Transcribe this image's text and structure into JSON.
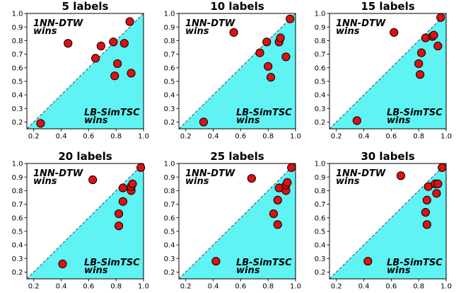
{
  "chart_data": [
    {
      "type": "scatter",
      "title": "5 labels",
      "xlim": [
        0.15,
        1.0
      ],
      "ylim": [
        0.15,
        1.0
      ],
      "xticks": [
        "0.2",
        "0.4",
        "0.6",
        "0.8",
        "1.0"
      ],
      "yticks": [
        "0.2",
        "0.3",
        "0.4",
        "0.5",
        "0.6",
        "0.7",
        "0.8",
        "0.9",
        "1.0"
      ],
      "annotation_top": [
        "1NN-DTW",
        "wins"
      ],
      "annotation_bottom": [
        "LB-SimTSC",
        "wins"
      ],
      "points": [
        [
          0.25,
          0.19
        ],
        [
          0.45,
          0.78
        ],
        [
          0.65,
          0.67
        ],
        [
          0.69,
          0.76
        ],
        [
          0.78,
          0.79
        ],
        [
          0.79,
          0.54
        ],
        [
          0.81,
          0.63
        ],
        [
          0.86,
          0.78
        ],
        [
          0.9,
          0.94
        ],
        [
          0.91,
          0.56
        ]
      ]
    },
    {
      "type": "scatter",
      "title": "10 labels",
      "xlim": [
        0.15,
        1.0
      ],
      "ylim": [
        0.15,
        1.0
      ],
      "xticks": [
        "0.2",
        "0.4",
        "0.6",
        "0.8",
        "1.0"
      ],
      "yticks": [
        "0.2",
        "0.3",
        "0.4",
        "0.5",
        "0.6",
        "0.7",
        "0.8",
        "0.9",
        "1.0"
      ],
      "annotation_top": [
        "1NN-DTW",
        "wins"
      ],
      "annotation_bottom": [
        "LB-SimTSC",
        "wins"
      ],
      "points": [
        [
          0.33,
          0.2
        ],
        [
          0.55,
          0.86
        ],
        [
          0.74,
          0.71
        ],
        [
          0.79,
          0.79
        ],
        [
          0.8,
          0.61
        ],
        [
          0.82,
          0.53
        ],
        [
          0.88,
          0.79
        ],
        [
          0.89,
          0.82
        ],
        [
          0.93,
          0.68
        ],
        [
          0.96,
          0.96
        ]
      ]
    },
    {
      "type": "scatter",
      "title": "15 labels",
      "xlim": [
        0.15,
        1.0
      ],
      "ylim": [
        0.15,
        1.0
      ],
      "xticks": [
        "0.2",
        "0.4",
        "0.6",
        "0.8",
        "1.0"
      ],
      "yticks": [
        "0.2",
        "0.3",
        "0.4",
        "0.5",
        "0.6",
        "0.7",
        "0.8",
        "0.9",
        "1.0"
      ],
      "annotation_top": [
        "1NN-DTW",
        "wins"
      ],
      "annotation_bottom": [
        "LB-SimTSC",
        "wins"
      ],
      "points": [
        [
          0.35,
          0.21
        ],
        [
          0.62,
          0.86
        ],
        [
          0.8,
          0.63
        ],
        [
          0.81,
          0.55
        ],
        [
          0.82,
          0.71
        ],
        [
          0.85,
          0.82
        ],
        [
          0.9,
          0.83
        ],
        [
          0.91,
          0.84
        ],
        [
          0.94,
          0.76
        ],
        [
          0.96,
          0.97
        ]
      ]
    },
    {
      "type": "scatter",
      "title": "20 labels",
      "xlim": [
        0.15,
        1.0
      ],
      "ylim": [
        0.15,
        1.0
      ],
      "xticks": [
        "0.2",
        "0.4",
        "0.6",
        "0.8",
        "1.0"
      ],
      "yticks": [
        "0.2",
        "0.3",
        "0.4",
        "0.5",
        "0.6",
        "0.7",
        "0.8",
        "0.9",
        "1.0"
      ],
      "annotation_top": [
        "1NN-DTW",
        "wins"
      ],
      "annotation_bottom": [
        "LB-SimTSC",
        "wins"
      ],
      "points": [
        [
          0.41,
          0.26
        ],
        [
          0.63,
          0.88
        ],
        [
          0.82,
          0.63
        ],
        [
          0.82,
          0.54
        ],
        [
          0.85,
          0.72
        ],
        [
          0.85,
          0.82
        ],
        [
          0.91,
          0.8
        ],
        [
          0.91,
          0.83
        ],
        [
          0.92,
          0.85
        ],
        [
          0.98,
          0.97
        ]
      ]
    },
    {
      "type": "scatter",
      "title": "25 labels",
      "xlim": [
        0.15,
        1.0
      ],
      "ylim": [
        0.15,
        1.0
      ],
      "xticks": [
        "0.2",
        "0.4",
        "0.6",
        "0.8",
        "1.0"
      ],
      "yticks": [
        "0.2",
        "0.3",
        "0.4",
        "0.5",
        "0.6",
        "0.7",
        "0.8",
        "0.9",
        "1.0"
      ],
      "annotation_top": [
        "1NN-DTW",
        "wins"
      ],
      "annotation_bottom": [
        "LB-SimTSC",
        "wins"
      ],
      "points": [
        [
          0.42,
          0.28
        ],
        [
          0.68,
          0.89
        ],
        [
          0.84,
          0.63
        ],
        [
          0.87,
          0.55
        ],
        [
          0.87,
          0.73
        ],
        [
          0.88,
          0.82
        ],
        [
          0.93,
          0.8
        ],
        [
          0.93,
          0.84
        ],
        [
          0.94,
          0.86
        ],
        [
          0.97,
          0.97
        ]
      ]
    },
    {
      "type": "scatter",
      "title": "30 labels",
      "xlim": [
        0.15,
        1.0
      ],
      "ylim": [
        0.15,
        1.0
      ],
      "xticks": [
        "0.2",
        "0.4",
        "0.6",
        "0.8",
        "1.0"
      ],
      "yticks": [
        "0.2",
        "0.3",
        "0.4",
        "0.5",
        "0.6",
        "0.7",
        "0.8",
        "0.9",
        "1.0"
      ],
      "annotation_top": [
        "1NN-DTW",
        "wins"
      ],
      "annotation_bottom": [
        "LB-SimTSC",
        "wins"
      ],
      "points": [
        [
          0.43,
          0.28
        ],
        [
          0.67,
          0.91
        ],
        [
          0.85,
          0.64
        ],
        [
          0.86,
          0.73
        ],
        [
          0.86,
          0.55
        ],
        [
          0.87,
          0.83
        ],
        [
          0.92,
          0.85
        ],
        [
          0.93,
          0.78
        ],
        [
          0.94,
          0.85
        ],
        [
          0.97,
          0.97
        ]
      ]
    }
  ],
  "colors": {
    "win_region": "#5ff3f3",
    "marker_fill": "#e01010",
    "marker_edge": "#000000",
    "diagonal": "#1f3f5f"
  }
}
